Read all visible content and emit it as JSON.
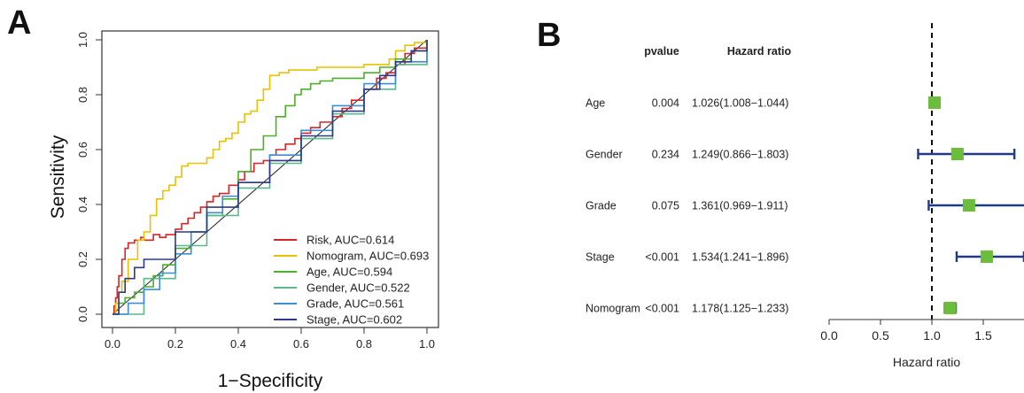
{
  "panels": {
    "a_label": "A",
    "b_label": "B"
  },
  "chart_data": [
    {
      "type": "line",
      "panel": "A",
      "xlabel": "1−Specificity",
      "ylabel": "Sensitivity",
      "xlim": [
        0,
        1
      ],
      "ylim": [
        0,
        1
      ],
      "xticks": [
        "0.0",
        "0.2",
        "0.4",
        "0.6",
        "0.8",
        "1.0"
      ],
      "yticks": [
        "0.0",
        "0.2",
        "0.4",
        "0.6",
        "0.8",
        "1.0"
      ],
      "legend_position": "bottom-right",
      "reference_line": true,
      "series": [
        {
          "name": "Risk, AUC=0.614",
          "color": "#d62728",
          "x": [
            0,
            0.005,
            0.01,
            0.015,
            0.02,
            0.03,
            0.04,
            0.05,
            0.07,
            0.09,
            0.1,
            0.13,
            0.15,
            0.17,
            0.2,
            0.22,
            0.24,
            0.26,
            0.28,
            0.3,
            0.32,
            0.34,
            0.37,
            0.4,
            0.42,
            0.45,
            0.48,
            0.5,
            0.52,
            0.55,
            0.58,
            0.6,
            0.63,
            0.66,
            0.7,
            0.73,
            0.76,
            0.8,
            0.84,
            0.87,
            0.9,
            0.93,
            0.96,
            1.0
          ],
          "y": [
            0,
            0.03,
            0.06,
            0.1,
            0.14,
            0.2,
            0.24,
            0.26,
            0.27,
            0.28,
            0.27,
            0.29,
            0.28,
            0.29,
            0.31,
            0.33,
            0.35,
            0.37,
            0.39,
            0.41,
            0.43,
            0.44,
            0.47,
            0.49,
            0.52,
            0.55,
            0.56,
            0.58,
            0.6,
            0.62,
            0.64,
            0.66,
            0.68,
            0.7,
            0.72,
            0.75,
            0.78,
            0.82,
            0.86,
            0.88,
            0.91,
            0.95,
            0.97,
            1.0
          ]
        },
        {
          "name": "Nomogram, AUC=0.693",
          "color": "#e6c200",
          "x": [
            0,
            0.01,
            0.02,
            0.03,
            0.05,
            0.08,
            0.1,
            0.12,
            0.14,
            0.16,
            0.18,
            0.2,
            0.22,
            0.24,
            0.26,
            0.28,
            0.3,
            0.32,
            0.34,
            0.36,
            0.38,
            0.4,
            0.42,
            0.44,
            0.46,
            0.48,
            0.5,
            0.53,
            0.56,
            0.6,
            0.65,
            0.7,
            0.75,
            0.8,
            0.85,
            0.88,
            0.9,
            0.93,
            0.96,
            1.0
          ],
          "y": [
            0,
            0.04,
            0.08,
            0.12,
            0.2,
            0.27,
            0.3,
            0.36,
            0.42,
            0.45,
            0.47,
            0.5,
            0.54,
            0.55,
            0.55,
            0.55,
            0.57,
            0.6,
            0.63,
            0.64,
            0.66,
            0.7,
            0.73,
            0.74,
            0.78,
            0.82,
            0.87,
            0.88,
            0.89,
            0.89,
            0.9,
            0.9,
            0.9,
            0.91,
            0.91,
            0.93,
            0.96,
            0.98,
            0.99,
            1.0
          ]
        },
        {
          "name": "Age, AUC=0.594",
          "color": "#4daf2a",
          "x": [
            0,
            0.02,
            0.04,
            0.07,
            0.1,
            0.13,
            0.16,
            0.2,
            0.25,
            0.3,
            0.35,
            0.4,
            0.44,
            0.48,
            0.52,
            0.55,
            0.58,
            0.6,
            0.63,
            0.66,
            0.7,
            0.75,
            0.8,
            0.85,
            0.9,
            0.95,
            1.0
          ],
          "y": [
            0,
            0.04,
            0.06,
            0.08,
            0.1,
            0.14,
            0.18,
            0.24,
            0.3,
            0.36,
            0.42,
            0.52,
            0.6,
            0.65,
            0.72,
            0.76,
            0.8,
            0.82,
            0.84,
            0.85,
            0.86,
            0.86,
            0.88,
            0.9,
            0.93,
            0.96,
            1.0
          ]
        },
        {
          "name": "Gender, AUC=0.522",
          "color": "#5cb88a",
          "x": [
            0,
            0.1,
            0.2,
            0.3,
            0.4,
            0.5,
            0.6,
            0.7,
            0.8,
            0.9,
            1.0
          ],
          "y": [
            0,
            0.13,
            0.25,
            0.36,
            0.46,
            0.55,
            0.64,
            0.73,
            0.82,
            0.91,
            1.0
          ]
        },
        {
          "name": "Grade, AUC=0.561",
          "color": "#3d8fd1",
          "x": [
            0,
            0.05,
            0.1,
            0.15,
            0.2,
            0.25,
            0.3,
            0.35,
            0.4,
            0.5,
            0.6,
            0.7,
            0.8,
            0.9,
            1.0
          ],
          "y": [
            0,
            0.04,
            0.09,
            0.15,
            0.22,
            0.3,
            0.37,
            0.43,
            0.48,
            0.58,
            0.67,
            0.76,
            0.84,
            0.92,
            1.0
          ]
        },
        {
          "name": "Stage, AUC=0.602",
          "color": "#2e3a87",
          "x": [
            0,
            0.02,
            0.04,
            0.07,
            0.1,
            0.2,
            0.3,
            0.4,
            0.5,
            0.6,
            0.7,
            0.8,
            0.85,
            0.9,
            0.95,
            1.0
          ],
          "y": [
            0,
            0.08,
            0.13,
            0.17,
            0.2,
            0.3,
            0.39,
            0.48,
            0.56,
            0.65,
            0.74,
            0.82,
            0.87,
            0.92,
            0.96,
            1.0
          ]
        }
      ]
    },
    {
      "type": "forest",
      "panel": "B",
      "column_headers": {
        "pvalue": "pvalue",
        "hazard_ratio": "Hazard ratio"
      },
      "xlabel": "Hazard ratio",
      "xlim": [
        0,
        1.85
      ],
      "xticks": [
        "0.0",
        "0.5",
        "1.0",
        "1.5"
      ],
      "reference_line": 1.0,
      "marker_color": "#6cbd3c",
      "ci_color": "#1f3a8a",
      "rows": [
        {
          "name": "Age",
          "pvalue": "0.004",
          "hr_text": "1.026(1.008−1.044)",
          "hr": 1.026,
          "lo": 1.008,
          "hi": 1.044
        },
        {
          "name": "Gender",
          "pvalue": "0.234",
          "hr_text": "1.249(0.866−1.803)",
          "hr": 1.249,
          "lo": 0.866,
          "hi": 1.803
        },
        {
          "name": "Grade",
          "pvalue": "0.075",
          "hr_text": "1.361(0.969−1.911)",
          "hr": 1.361,
          "lo": 0.969,
          "hi": 1.911
        },
        {
          "name": "Stage",
          "pvalue": "<0.001",
          "hr_text": "1.534(1.241−1.896)",
          "hr": 1.534,
          "lo": 1.241,
          "hi": 1.896
        },
        {
          "name": "Nomogram",
          "pvalue": "<0.001",
          "hr_text": "1.178(1.125−1.233)",
          "hr": 1.178,
          "lo": 1.125,
          "hi": 1.233
        }
      ]
    }
  ]
}
